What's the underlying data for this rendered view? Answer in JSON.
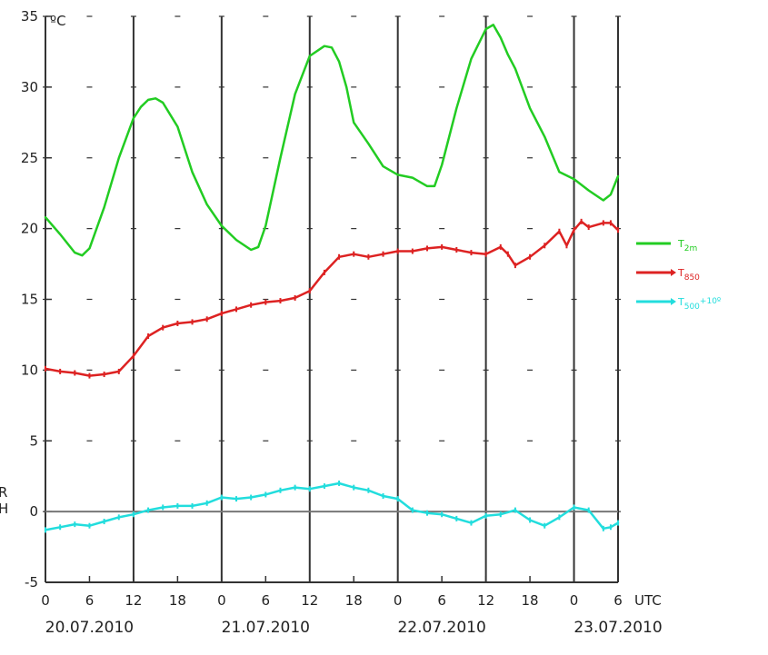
{
  "chart_data": {
    "type": "line",
    "unit_label": "ºC",
    "x_unit": "UTC",
    "ylim": [
      -5,
      35
    ],
    "yticks": [
      -5,
      0,
      5,
      10,
      15,
      20,
      25,
      30,
      35
    ],
    "x_hours_range": [
      0,
      78
    ],
    "x_ticks": [
      {
        "h": 0,
        "label": "0"
      },
      {
        "h": 6,
        "label": "6"
      },
      {
        "h": 12,
        "label": "12"
      },
      {
        "h": 18,
        "label": "18"
      },
      {
        "h": 24,
        "label": "0"
      },
      {
        "h": 30,
        "label": "6"
      },
      {
        "h": 36,
        "label": "12"
      },
      {
        "h": 42,
        "label": "18"
      },
      {
        "h": 48,
        "label": "0"
      },
      {
        "h": 54,
        "label": "6"
      },
      {
        "h": 60,
        "label": "12"
      },
      {
        "h": 66,
        "label": "18"
      },
      {
        "h": 72,
        "label": "0"
      },
      {
        "h": 78,
        "label": "6"
      }
    ],
    "day_labels": [
      {
        "h": 6,
        "label": "20.07.2010"
      },
      {
        "h": 30,
        "label": "21.07.2010"
      },
      {
        "h": 54,
        "label": "22.07.2010"
      },
      {
        "h": 78,
        "label": "23.07.2010"
      }
    ],
    "vertical_lines_h": [
      12,
      24,
      36,
      48,
      60,
      72,
      78
    ],
    "zero_line": true,
    "grid": false,
    "legend": {
      "placement": "right"
    },
    "series": [
      {
        "name_base": "T",
        "name_sub": "2m",
        "name_sup": "",
        "color": "#22cc22",
        "marker": false,
        "x": [
          0,
          2,
          4,
          5,
          6,
          8,
          10,
          12,
          13,
          14,
          15,
          16,
          18,
          20,
          22,
          24,
          26,
          28,
          29,
          30,
          32,
          34,
          36,
          38,
          39,
          40,
          41,
          42,
          44,
          46,
          48,
          50,
          52,
          53,
          54,
          56,
          58,
          60,
          61,
          62,
          63,
          64,
          66,
          68,
          70,
          72,
          74,
          76,
          77,
          78
        ],
        "y": [
          20.8,
          19.6,
          18.3,
          18.1,
          18.6,
          21.5,
          25.0,
          27.8,
          28.6,
          29.1,
          29.2,
          28.9,
          27.2,
          24.0,
          21.7,
          20.2,
          19.2,
          18.5,
          18.7,
          20.2,
          25.0,
          29.5,
          32.2,
          32.9,
          32.8,
          31.8,
          30.0,
          27.5,
          26.0,
          24.4,
          23.8,
          23.6,
          23.0,
          23.0,
          24.5,
          28.5,
          32.0,
          34.1,
          34.4,
          33.5,
          32.3,
          31.3,
          28.5,
          26.5,
          24.0,
          23.5,
          22.7,
          22.0,
          22.4,
          23.7
        ]
      },
      {
        "name_base": "T",
        "name_sub": "850",
        "name_sup": "",
        "color": "#dd2222",
        "marker": true,
        "x": [
          0,
          2,
          4,
          6,
          8,
          10,
          12,
          14,
          16,
          18,
          20,
          22,
          24,
          26,
          28,
          30,
          32,
          34,
          36,
          38,
          40,
          42,
          44,
          46,
          48,
          50,
          52,
          54,
          56,
          58,
          60,
          62,
          63,
          64,
          66,
          68,
          70,
          71,
          72,
          73,
          74,
          76,
          77,
          78
        ],
        "y": [
          10.1,
          9.9,
          9.8,
          9.6,
          9.7,
          9.9,
          11.0,
          12.4,
          13.0,
          13.3,
          13.4,
          13.6,
          14.0,
          14.3,
          14.6,
          14.8,
          14.9,
          15.1,
          15.6,
          16.9,
          18.0,
          18.2,
          18.0,
          18.2,
          18.4,
          18.4,
          18.6,
          18.7,
          18.5,
          18.3,
          18.2,
          18.7,
          18.2,
          17.4,
          18.0,
          18.8,
          19.8,
          18.8,
          19.9,
          20.5,
          20.1,
          20.4,
          20.4,
          19.9
        ]
      },
      {
        "name_base": "T",
        "name_sub": "500",
        "name_sup": "+10º",
        "color": "#22dddd",
        "marker": true,
        "x": [
          0,
          2,
          4,
          6,
          8,
          10,
          12,
          14,
          16,
          18,
          20,
          22,
          24,
          26,
          28,
          30,
          32,
          34,
          36,
          38,
          40,
          42,
          44,
          46,
          48,
          50,
          52,
          54,
          56,
          58,
          60,
          62,
          64,
          66,
          68,
          70,
          72,
          74,
          76,
          77,
          78
        ],
        "y": [
          -1.3,
          -1.1,
          -0.9,
          -1.0,
          -0.7,
          -0.4,
          -0.2,
          0.1,
          0.3,
          0.4,
          0.4,
          0.6,
          1.0,
          0.9,
          1.0,
          1.2,
          1.5,
          1.7,
          1.6,
          1.8,
          2.0,
          1.7,
          1.5,
          1.1,
          0.9,
          0.1,
          -0.1,
          -0.2,
          -0.5,
          -0.8,
          -0.3,
          -0.2,
          0.1,
          -0.6,
          -1.0,
          -0.4,
          0.3,
          0.1,
          -1.2,
          -1.1,
          -0.8
        ]
      }
    ]
  },
  "left_edge_fragments": [
    {
      "text": "R",
      "color": "#22cc22"
    },
    {
      "text": "H",
      "color": "#2222cc"
    }
  ]
}
